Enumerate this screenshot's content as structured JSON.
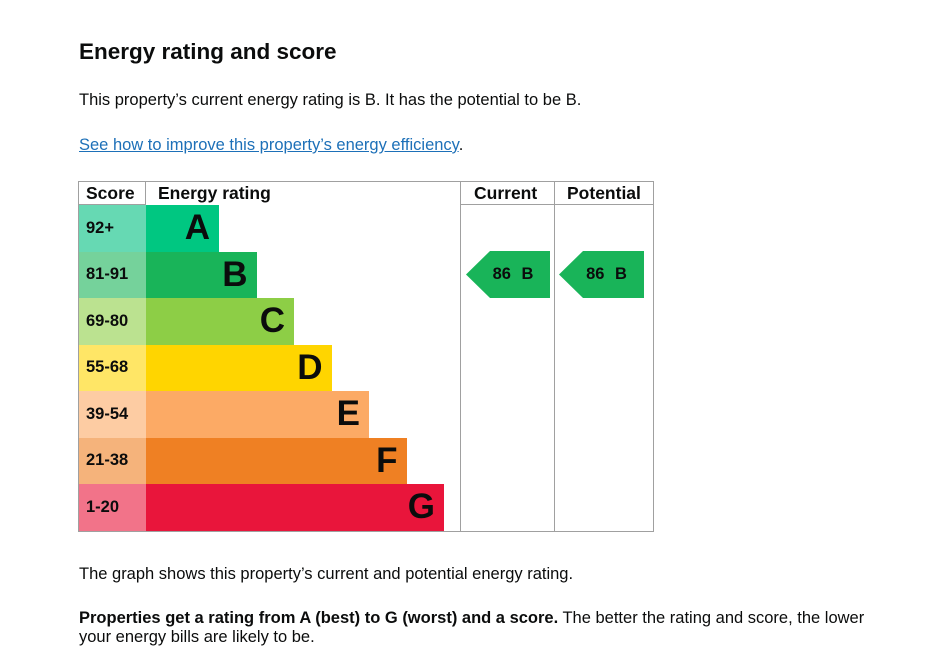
{
  "heading": "Energy rating and score",
  "intro": "This property’s current energy rating is B. It has the potential to be B.",
  "link": {
    "text": "See how to improve this property’s energy efficiency",
    "after": "."
  },
  "table": {
    "headers": {
      "score": "Score",
      "rating": "Energy rating",
      "current": "Current",
      "potential": "Potential"
    },
    "bands": [
      {
        "score": "92+",
        "letter": "A",
        "bar_color": "#00c781",
        "score_bg": "#66d9b3"
      },
      {
        "score": "81-91",
        "letter": "B",
        "bar_color": "#19b459",
        "score_bg": "#75d29b"
      },
      {
        "score": "69-80",
        "letter": "C",
        "bar_color": "#8dce46",
        "score_bg": "#bbe290"
      },
      {
        "score": "55-68",
        "letter": "D",
        "bar_color": "#ffd500",
        "score_bg": "#ffe666"
      },
      {
        "score": "39-54",
        "letter": "E",
        "bar_color": "#fcaa65",
        "score_bg": "#fdcca3"
      },
      {
        "score": "21-38",
        "letter": "F",
        "bar_color": "#ef8023",
        "score_bg": "#f5b37b"
      },
      {
        "score": "1-20",
        "letter": "G",
        "bar_color": "#e9153b",
        "score_bg": "#f27389"
      }
    ],
    "current": {
      "label": "86 B",
      "score": 86,
      "band": "B",
      "color": "#19b459"
    },
    "potential": {
      "label": "86 B",
      "score": 86,
      "band": "B",
      "color": "#19b459"
    }
  },
  "graph_note": "The graph shows this property’s current and potential energy rating.",
  "explain": {
    "bold": "Properties get a rating from A (best) to G (worst) and a score.",
    "rest": " The better the rating and score, the lower your energy bills are likely to be."
  }
}
